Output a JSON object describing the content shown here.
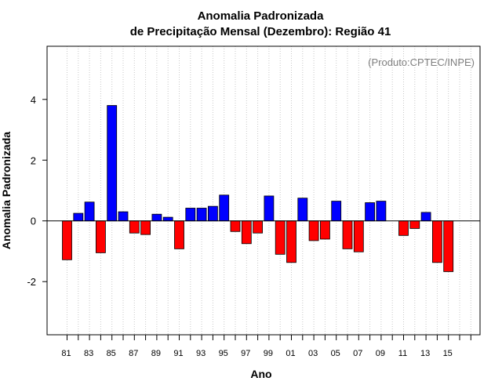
{
  "chart_data": {
    "type": "bar",
    "title_line1": "Anomalia Padronizada",
    "title_line2": "de Precipitação Mensal (Dezembro): Região 41",
    "credit": "(Produto:CPTEC/INPE)",
    "xlabel": "Ano",
    "ylabel": "Anomalia Padronizada",
    "ylim": [
      -3.75,
      5.75
    ],
    "yticks": [
      -2,
      0,
      2,
      4
    ],
    "grid": "vertical-dotted",
    "positive_color": "#0000ff",
    "negative_color": "#ff0000",
    "x_tick_labels": [
      "81",
      "83",
      "85",
      "87",
      "89",
      "91",
      "93",
      "95",
      "97",
      "99",
      "01",
      "03",
      "05",
      "07",
      "09",
      "11",
      "13",
      "15"
    ],
    "categories": [
      "1981",
      "1982",
      "1983",
      "1984",
      "1985",
      "1986",
      "1987",
      "1988",
      "1989",
      "1990",
      "1991",
      "1992",
      "1993",
      "1994",
      "1995",
      "1996",
      "1997",
      "1998",
      "1999",
      "2000",
      "2001",
      "2002",
      "2003",
      "2004",
      "2005",
      "2006",
      "2007",
      "2008",
      "2009",
      "2010",
      "2011",
      "2012",
      "2013",
      "2014",
      "2015",
      "2016",
      "2017"
    ],
    "values": [
      -1.28,
      0.25,
      0.62,
      -1.05,
      3.8,
      0.3,
      -0.4,
      -0.45,
      0.22,
      0.12,
      -0.92,
      0.42,
      0.42,
      0.48,
      0.85,
      -0.35,
      -0.75,
      -0.4,
      0.82,
      -1.1,
      -1.37,
      0.75,
      -0.65,
      -0.6,
      0.65,
      -0.92,
      -1.02,
      0.6,
      0.65,
      null,
      -0.48,
      -0.25,
      0.28,
      -1.37,
      -1.67,
      null,
      null
    ]
  }
}
